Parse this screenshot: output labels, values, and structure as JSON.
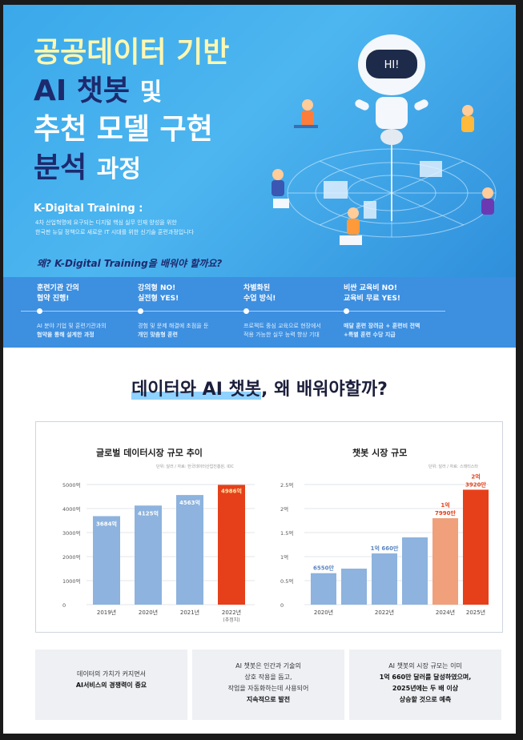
{
  "hero": {
    "title_line1": "공공데이터 기반",
    "title_line2_bold": "AI 챗봇",
    "title_line2_rest": "및",
    "title_line3": "추천 모델 구현",
    "title_line4_bold": "분석",
    "title_line4_rest": "과정",
    "kdt_heading": "K-Digital Training :",
    "kdt_desc_1": "4차 산업혁명에 요구되는 디지털 핵심 실무 인재 양성을 위한",
    "kdt_desc_2": "한국판 뉴딜 정책으로 새로운 IT 시대를 위한 신기술 훈련과정입니다",
    "why_text": "왜? K-Digital Training을 배워야 할까요?",
    "robot_visor": "HI!"
  },
  "features": [
    {
      "h1": "훈련기관 간의",
      "h2": "협약 진행!",
      "d1": "AI 분야 기업 및 훈련기관과의",
      "d2": "협약을 통해 설계한 과정"
    },
    {
      "h1": "강의형 NO!",
      "h2": "실전형 YES!",
      "d1": "경험 및 문제 해결에 초점을 둔",
      "d2": "개인 맞춤형 훈련"
    },
    {
      "h1": "차별화된",
      "h2": "수업 방식!",
      "d1": "프로젝트 중심 교육으로 현장에서",
      "d2": "적용 가능한 실무 능력 향상 기대"
    },
    {
      "h1": "비싼 교육비 NO!",
      "h2": "교육비 무료 YES!",
      "d1": "매달 훈련 장려금 + 훈련비 전액",
      "d2": "+특별 훈련 수당 지급"
    }
  ],
  "section": {
    "title_highlight": "데이터와 AI 챗봇",
    "title_rest": ", 왜 배워야할까?"
  },
  "chart_data": [
    {
      "type": "bar",
      "title": "글로벌 데이터시장 규모 추이",
      "source": "단위: 달러 / 자료: 한국데이터산업진흥원, IDC",
      "categories": [
        "2019년",
        "2020년",
        "2021년",
        "2022년"
      ],
      "category_notes": [
        "",
        "",
        "",
        "(추정치)"
      ],
      "values": [
        3684,
        4125,
        4563,
        4986
      ],
      "value_labels": [
        "3684억",
        "4125억",
        "4563억",
        "4986억"
      ],
      "yticks": [
        0,
        1000,
        2000,
        3000,
        4000,
        5000
      ],
      "ytick_labels": [
        "0",
        "1000억",
        "2000억",
        "3000억",
        "4000억",
        "5000억"
      ],
      "ylim": [
        0,
        5000
      ],
      "colors": [
        "#8db3de",
        "#8db3de",
        "#8db3de",
        "#e5401a"
      ]
    },
    {
      "type": "bar",
      "title": "챗봇 시장 규모",
      "source": "단위: 달러 / 자료: 스태티스타",
      "categories": [
        "2020년",
        "",
        "2022년",
        "",
        "2024년",
        "2025년"
      ],
      "values": [
        0.655,
        0.75,
        1.066,
        1.4,
        1.799,
        2.392
      ],
      "value_labels": [
        "6550만",
        "",
        "1억 660만",
        "",
        "1억 7990만",
        "2억 3920만"
      ],
      "yticks": [
        0,
        0.5,
        1,
        1.5,
        2,
        2.5
      ],
      "ytick_labels": [
        "0",
        "0.5억",
        "1억",
        "1.5억",
        "2억",
        "2.5억"
      ],
      "ylim": [
        0,
        2.5
      ],
      "colors": [
        "#8db3de",
        "#8db3de",
        "#8db3de",
        "#8db3de",
        "#f0a07a",
        "#e5401a"
      ]
    }
  ],
  "cards": [
    {
      "l1": "데이터의 가치가 커지면서",
      "b1": "AI서비스의 경쟁력이 중요",
      "l2": "",
      "b2": ""
    },
    {
      "l1": "AI 챗봇은 인간과 기술의",
      "l2": "상호 작용을 돕고,",
      "l3": "작업을 자동화하는데 사용되어",
      "b1": "지속적으로 발전"
    },
    {
      "l1": "AI 챗봇의 시장 규모는 이미",
      "b1": "1억 660만 달러를 달성하였으며,",
      "b2": "2025년에는 두 배 이상",
      "b3": "상승할 것으로 예측"
    }
  ],
  "colors": {
    "hero_bg": "#3aa8ea",
    "band_bg": "#3d8fe0",
    "accent_red": "#e5401a",
    "bar_blue": "#8db3de",
    "navy": "#1d2a6e"
  }
}
